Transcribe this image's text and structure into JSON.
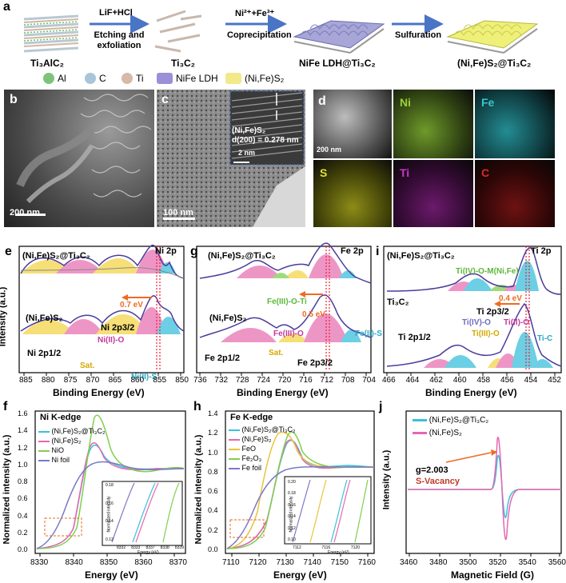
{
  "panel_letters": {
    "a": "a",
    "b": "b",
    "c": "c",
    "d": "d",
    "e": "e",
    "f": "f",
    "g": "g",
    "h": "h",
    "i": "i",
    "j": "j"
  },
  "scheme": {
    "stages": [
      "Ti₃AlC₂",
      "Ti₃C₂",
      "NiFe LDH@Ti₃C₂",
      "(Ni,Fe)S₂@Ti₃C₂"
    ],
    "arrows": [
      {
        "top": "LiF+HCl",
        "bottom": "Etching and exfoliation"
      },
      {
        "top": "Ni²⁺+Fe³⁺",
        "bottom": "Coprecipitation"
      },
      {
        "top": "",
        "bottom": "Sulfuration"
      }
    ],
    "legend": [
      {
        "label": "Al",
        "color": "#7cc47a"
      },
      {
        "label": "C",
        "color": "#a8c5d9"
      },
      {
        "label": "Ti",
        "color": "#d8b8a8"
      },
      {
        "label": "NiFe LDH",
        "color": "#9b8fd8"
      },
      {
        "label": "(Ni,Fe)S₂",
        "color": "#f2e98a"
      }
    ]
  },
  "sem_b": {
    "scale": "200 nm"
  },
  "tem_c": {
    "scale": "100 nm",
    "inset_title": "(Ni,Fe)S₂",
    "inset_d": "d(200) = 0.278 nm",
    "inset_scale": "2 nm"
  },
  "edx_d": {
    "scale": "200 nm",
    "maps": [
      {
        "label": "Ni",
        "color": "#9bd13a"
      },
      {
        "label": "Fe",
        "color": "#37c6cf"
      },
      {
        "label": "S",
        "color": "#e1e13a"
      },
      {
        "label": "Ti",
        "color": "#c83ac8"
      },
      {
        "label": "C",
        "color": "#d62a2a"
      }
    ]
  },
  "xps_ni": {
    "xlabel": "Binding Energy (eV)",
    "ylabel": "Intensity (a.u.)",
    "xticks": [
      "885",
      "880",
      "875",
      "870",
      "865",
      "860",
      "855",
      "850"
    ],
    "top_sample": "(Ni,Fe)S₂@Ti₃C₂",
    "bottom_sample": "(Ni,Fe)S₂",
    "region": "Ni 2p",
    "shift": "0.7 eV",
    "p32": "Ni 2p3/2",
    "p12": "Ni 2p1/2",
    "sat": "Sat.",
    "ni2o": "Ni(II)-O",
    "ni2s": "Ni(II)-S"
  },
  "xps_fe": {
    "xlabel": "Binding Energy (eV)",
    "xticks": [
      "736",
      "732",
      "728",
      "724",
      "720",
      "716",
      "712",
      "708",
      "704"
    ],
    "top_sample": "(Ni,Fe)S₂@Ti₃C₂",
    "bottom_sample": "(Ni,Fe)S₂",
    "region": "Fe 2p",
    "shift": "0.5 eV",
    "feoti": "Fe(III)-O-Ti",
    "fe3o": "Fe(III)-O",
    "fe2s": "Fe(II)-S",
    "p12": "Fe 2p1/2",
    "p32": "Fe 2p3/2",
    "sat": "Sat."
  },
  "xps_ti": {
    "xlabel": "Binding Energy (eV)",
    "xticks": [
      "466",
      "464",
      "462",
      "460",
      "458",
      "456",
      "454",
      "452"
    ],
    "top_sample": "(Ni,Fe)S₂@Ti₃C₂",
    "bottom_sample": "Ti₃C₂",
    "region": "Ti 2p",
    "shift": "0.4 eV",
    "tiom": "Ti(IV)-O-M(Ni,Fe)",
    "p32": "Ti 2p3/2",
    "p12": "Ti 2p1/2",
    "ti4o": "Ti(IV)-O",
    "ti3o": "Ti(III)-O",
    "ti2o": "Ti(II)-O",
    "tic": "Ti-C"
  },
  "xas_ni": {
    "title": "Ni K-edge",
    "xlabel": "Energy (eV)",
    "ylabel": "Normalized intensity (a.u.)",
    "xticks": [
      "8330",
      "8340",
      "8350",
      "8360",
      "8370"
    ],
    "yticks": [
      "0.0",
      "0.2",
      "0.4",
      "0.6",
      "0.8",
      "1.0",
      "1.2",
      "1.4",
      "1.6"
    ],
    "legend": [
      {
        "label": "(Ni,Fe)S₂@Ti₃C₂",
        "color": "#3bbfdc"
      },
      {
        "label": "(Ni,Fe)S₂",
        "color": "#e667b0"
      },
      {
        "label": "NiO",
        "color": "#7fcf4e"
      },
      {
        "label": "Ni foil",
        "color": "#7b79c4"
      }
    ],
    "inset_xticks": [
      "8332",
      "8333",
      "8337",
      "8338",
      "8339"
    ],
    "inset_yticks": [
      "0.12",
      "0.14",
      "0.16",
      "0.18"
    ],
    "inset_xlabel": "Energy (eV)",
    "inset_ylabel": "Normalized intensity"
  },
  "xas_fe": {
    "title": "Fe K-edge",
    "xlabel": "Energy (eV)",
    "xticks": [
      "7110",
      "7120",
      "7130",
      "7140",
      "7150",
      "7160"
    ],
    "yticks": [
      "0.0",
      "0.2",
      "0.4",
      "0.6",
      "0.8",
      "1.0",
      "1.2",
      "1.4"
    ],
    "legend": [
      {
        "label": "(Ni,Fe)S₂@Ti₃C₂",
        "color": "#3bbfdc"
      },
      {
        "label": "(Ni,Fe)S₂",
        "color": "#e667b0"
      },
      {
        "label": "FeO",
        "color": "#e8c33c"
      },
      {
        "label": "Fe₂O₃",
        "color": "#7fcf4e"
      },
      {
        "label": "Fe foil",
        "color": "#7b79c4"
      }
    ],
    "inset_xticks": [
      "7112",
      "7116",
      "7120"
    ],
    "inset_yticks": [
      "0.10",
      "0.12",
      "0.14",
      "0.16",
      "0.18",
      "0.20"
    ],
    "inset_xlabel": "Energy (eV)",
    "inset_ylabel": "Normalized intensity"
  },
  "epr": {
    "xlabel": "Magnetic Field (G)",
    "ylabel": "Intensity (a.u.)",
    "xticks": [
      "3460",
      "3480",
      "3500",
      "3520",
      "3540",
      "3560"
    ],
    "legend": [
      {
        "label": "(Ni,Fe)S₂@Ti₃C₂",
        "color": "#3bbfdc"
      },
      {
        "label": "(Ni,Fe)S₂",
        "color": "#e667b0"
      }
    ],
    "gval": "g=2.003",
    "vac": "S-Vacancy"
  }
}
